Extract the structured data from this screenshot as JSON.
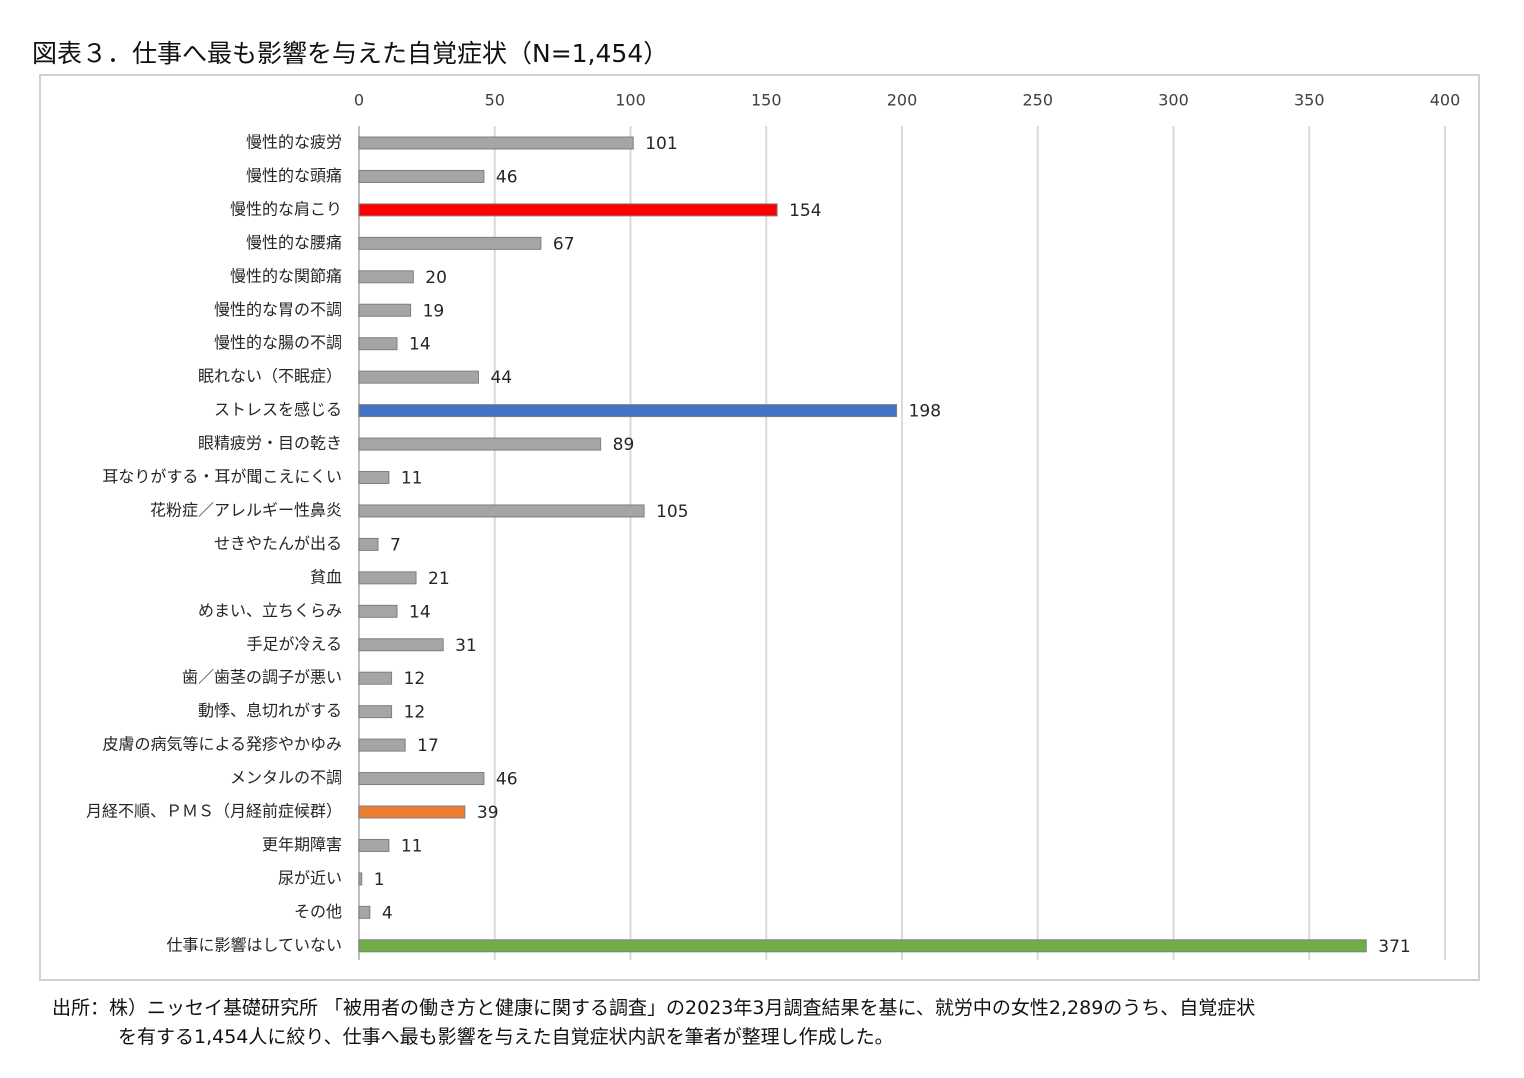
{
  "title": "図表３．仕事へ最も影響を与えた自覚症状（N=1,454）",
  "source": {
    "line1": "出所：株）ニッセイ基礎研究所 「被用者の働き方と健康に関する調査」の2023年3月調査結果を基に、就労中の女性2,289のうち、自覚症状",
    "line2": "を有する1,454人に絞り、仕事へ最も影響を与えた自覚症状内訳を筆者が整理し作成した。"
  },
  "colors": {
    "default": "#a5a5a5",
    "highlight_red": "#ff0000",
    "highlight_blue": "#4472c4",
    "highlight_orange": "#ed7d31",
    "highlight_green": "#70ad47",
    "grid": "#d9d9d9"
  },
  "chart_data": {
    "type": "bar",
    "orientation": "horizontal",
    "xlim": [
      0,
      400
    ],
    "ticks": [
      0,
      50,
      100,
      150,
      200,
      250,
      300,
      350,
      400
    ],
    "grid": true,
    "categories": [
      "慢性的な疲労",
      "慢性的な頭痛",
      "慢性的な肩こり",
      "慢性的な腰痛",
      "慢性的な関節痛",
      "慢性的な胃の不調",
      "慢性的な腸の不調",
      "眠れない（不眠症）",
      "ストレスを感じる",
      "眼精疲労・目の乾き",
      "耳なりがする・耳が聞こえにくい",
      "花粉症／アレルギー性鼻炎",
      "せきやたんが出る",
      "貧血",
      "めまい、立ちくらみ",
      "手足が冷える",
      "歯／歯茎の調子が悪い",
      "動悸、息切れがする",
      "皮膚の病気等による発疹やかゆみ",
      "メンタルの不調",
      "月経不順、ＰＭＳ（月経前症候群）",
      "更年期障害",
      "尿が近い",
      "その他",
      "仕事に影響はしていない"
    ],
    "values": [
      101,
      46,
      154,
      67,
      20,
      19,
      14,
      44,
      198,
      89,
      11,
      105,
      7,
      21,
      14,
      31,
      12,
      12,
      17,
      46,
      39,
      11,
      1,
      4,
      371
    ],
    "bar_colors": [
      "default",
      "default",
      "highlight_red",
      "default",
      "default",
      "default",
      "default",
      "default",
      "highlight_blue",
      "default",
      "default",
      "default",
      "default",
      "default",
      "default",
      "default",
      "default",
      "default",
      "default",
      "default",
      "highlight_orange",
      "default",
      "default",
      "default",
      "highlight_green"
    ]
  }
}
